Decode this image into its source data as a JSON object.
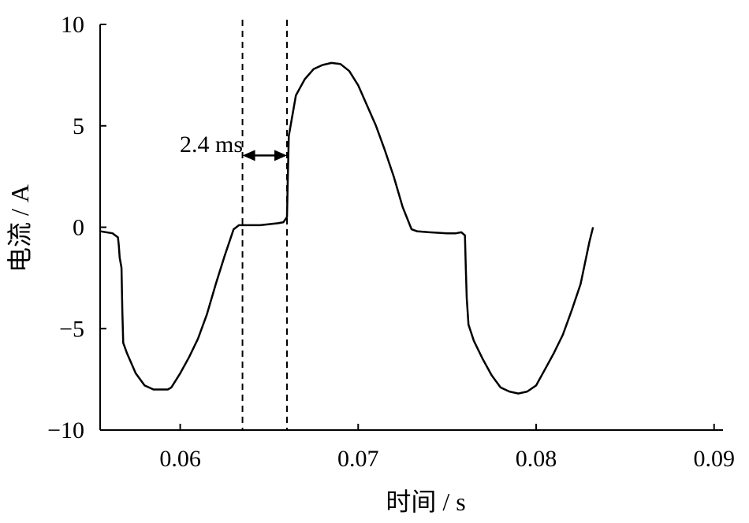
{
  "chart_data": {
    "type": "line",
    "xlabel": "时间 / s",
    "ylabel": "电流 / A",
    "xlim": [
      0.0555,
      0.0905
    ],
    "ylim": [
      -10,
      10
    ],
    "x_ticks": [
      0.06,
      0.07,
      0.08,
      0.09
    ],
    "x_tick_labels": [
      "0.06",
      "0.07",
      "0.08",
      "0.09"
    ],
    "y_ticks": [
      10,
      5,
      0,
      -5,
      -10
    ],
    "y_tick_labels": [
      "10",
      "5",
      "0",
      "−5",
      "−10"
    ],
    "grid": false,
    "series": [
      {
        "x": [
          0.0555,
          0.0562,
          0.0565,
          0.05655,
          0.0566,
          0.0567,
          0.05675,
          0.0568,
          0.057,
          0.0575,
          0.058,
          0.0585,
          0.059,
          0.0593,
          0.0595,
          0.06,
          0.0605,
          0.061,
          0.0615,
          0.062,
          0.0625,
          0.063,
          0.0633,
          0.0635,
          0.064,
          0.0645,
          0.065,
          0.0655,
          0.0658,
          0.066,
          0.06605,
          0.0661,
          0.0663,
          0.0665,
          0.067,
          0.0675,
          0.068,
          0.0685,
          0.069,
          0.0695,
          0.07,
          0.0705,
          0.071,
          0.0715,
          0.072,
          0.0725,
          0.073,
          0.0733,
          0.074,
          0.075,
          0.0755,
          0.0758,
          0.076,
          0.07605,
          0.0761,
          0.0762,
          0.0765,
          0.077,
          0.0775,
          0.078,
          0.0785,
          0.079,
          0.0795,
          0.08,
          0.0805,
          0.081,
          0.0815,
          0.082,
          0.0825,
          0.083,
          0.0832
        ],
        "values": [
          -0.2,
          -0.3,
          -0.5,
          -0.9,
          -1.5,
          -2.0,
          -4.2,
          -5.7,
          -6.2,
          -7.2,
          -7.8,
          -8.0,
          -8.0,
          -8.0,
          -7.9,
          -7.2,
          -6.4,
          -5.5,
          -4.3,
          -2.8,
          -1.4,
          -0.1,
          0.1,
          0.1,
          0.1,
          0.1,
          0.15,
          0.2,
          0.25,
          0.5,
          2.5,
          4.5,
          5.5,
          6.5,
          7.3,
          7.8,
          8.0,
          8.1,
          8.05,
          7.7,
          7.0,
          6.0,
          5.0,
          3.8,
          2.5,
          1.0,
          -0.1,
          -0.2,
          -0.25,
          -0.3,
          -0.3,
          -0.25,
          -0.4,
          -2.0,
          -3.5,
          -4.8,
          -5.6,
          -6.5,
          -7.3,
          -7.9,
          -8.1,
          -8.2,
          -8.1,
          -7.8,
          -7.0,
          -6.2,
          -5.3,
          -4.1,
          -2.8,
          -0.7,
          0.0
        ]
      }
    ],
    "markers": {
      "vertical_lines_x": [
        0.0635,
        0.066
      ],
      "annotation": {
        "text": "2.4 ms",
        "y": 3.5
      }
    }
  }
}
